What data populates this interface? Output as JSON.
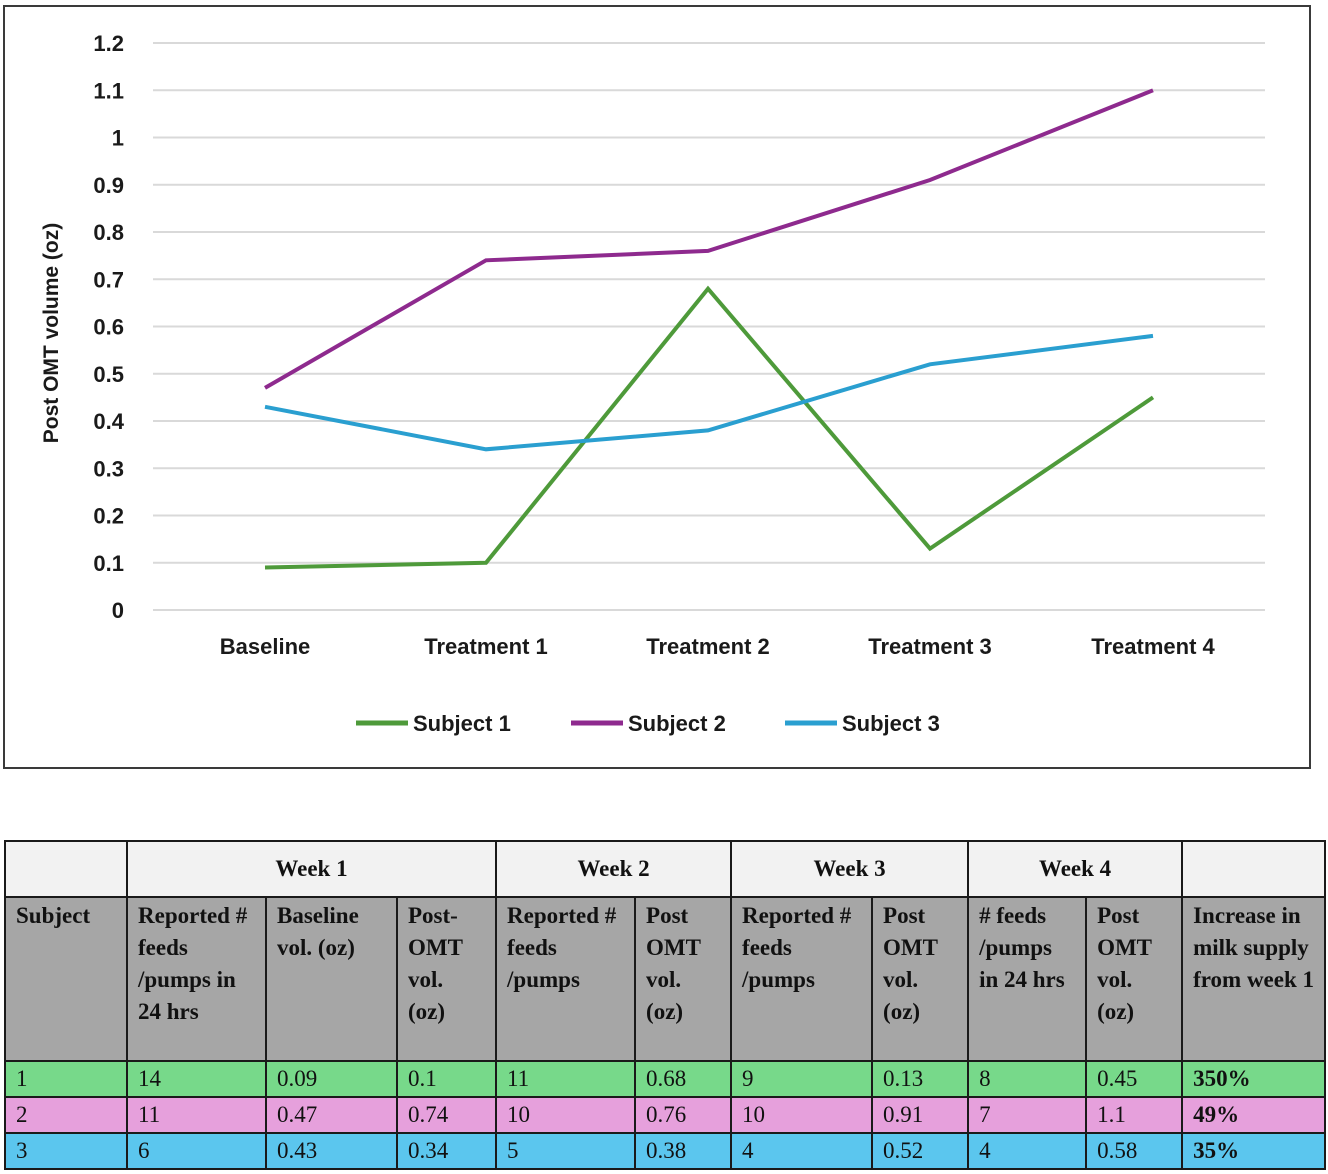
{
  "chart_data": {
    "type": "line",
    "title": "",
    "xlabel": "",
    "ylabel": "Post OMT volume (oz)",
    "ylim": [
      0,
      1.2
    ],
    "yticks": [
      "0",
      "0.1",
      "0.2",
      "0.3",
      "0.4",
      "0.5",
      "0.6",
      "0.7",
      "0.8",
      "0.9",
      "1",
      "1.1",
      "1.2"
    ],
    "grid": true,
    "legend_position": "bottom",
    "categories": [
      "Baseline",
      "Treatment 1",
      "Treatment 2",
      "Treatment 3",
      "Treatment 4"
    ],
    "series": [
      {
        "name": "Subject 1",
        "color": "#4e9a3a",
        "values": [
          0.09,
          0.1,
          0.68,
          0.13,
          0.45
        ]
      },
      {
        "name": "Subject 2",
        "color": "#8e2a8e",
        "values": [
          0.47,
          0.74,
          0.76,
          0.91,
          1.1
        ]
      },
      {
        "name": "Subject 3",
        "color": "#2a9fd0",
        "values": [
          0.43,
          0.34,
          0.38,
          0.52,
          0.58
        ]
      }
    ]
  },
  "table": {
    "week_headers": [
      {
        "label": "",
        "span": 1
      },
      {
        "label": "Week 1",
        "span": 3
      },
      {
        "label": "Week 2",
        "span": 2
      },
      {
        "label": "Week 3",
        "span": 2
      },
      {
        "label": "Week 4",
        "span": 2
      },
      {
        "label": "",
        "span": 1
      }
    ],
    "column_headers": [
      "Subject",
      "Reported # feeds /pumps in 24 hrs",
      "Baseline vol. (oz)",
      "Post-OMT vol. (oz)",
      "Reported # feeds /pumps",
      "Post OMT vol. (oz)",
      "Reported # feeds /pumps",
      "Post OMT vol. (oz)",
      "# feeds /pumps in 24 hrs",
      "Post OMT vol. (oz)",
      "Increase in milk supply from week 1"
    ],
    "rows": [
      {
        "color": "#77d98a",
        "cells": [
          "1",
          "14",
          "0.09",
          "0.1",
          "11",
          "0.68",
          "9",
          "0.13",
          "8",
          "0.45",
          "350%"
        ]
      },
      {
        "color": "#e6a0dc",
        "cells": [
          "2",
          "11",
          "0.47",
          "0.74",
          "10",
          "0.76",
          "10",
          "0.91",
          "7",
          "1.1",
          "49%"
        ]
      },
      {
        "color": "#5bc6ee",
        "cells": [
          "3",
          "6",
          "0.43",
          "0.34",
          "5",
          "0.38",
          "4",
          "0.52",
          "4",
          "0.58",
          "35%"
        ]
      }
    ]
  }
}
